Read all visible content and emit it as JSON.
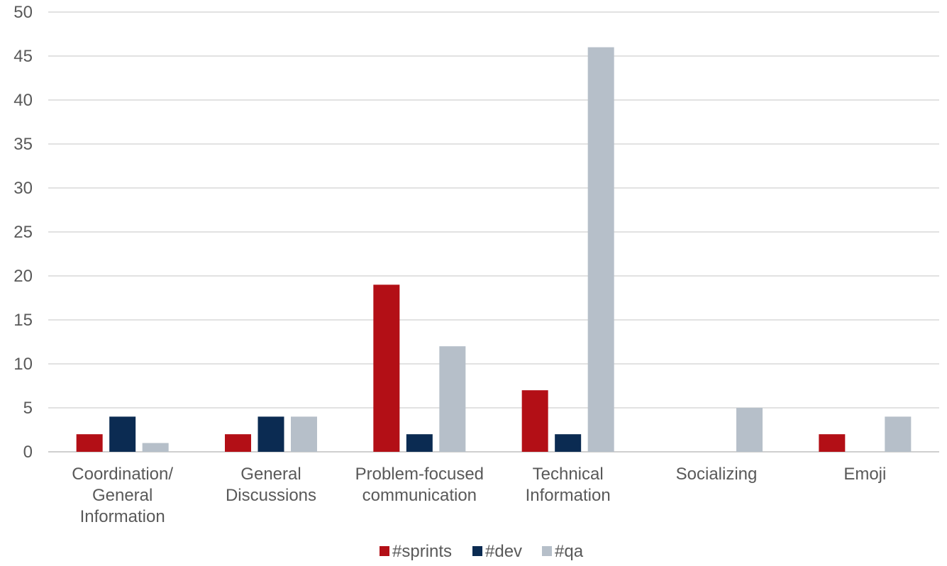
{
  "chart_data": {
    "type": "bar",
    "title": "",
    "xlabel": "",
    "ylabel": "",
    "ylim": [
      0,
      50
    ],
    "yticks": [
      0,
      5,
      10,
      15,
      20,
      25,
      30,
      35,
      40,
      45,
      50
    ],
    "grid": true,
    "legend_position": "bottom",
    "categories": [
      [
        "Coordination/",
        "General",
        "Information"
      ],
      [
        "General",
        "Discussions"
      ],
      [
        "Problem-focused",
        "communication"
      ],
      [
        "Technical",
        "Information"
      ],
      [
        "Socializing"
      ],
      [
        "Emoji"
      ]
    ],
    "series": [
      {
        "name": "#sprints",
        "color": "#B30F16",
        "values": [
          2,
          2,
          19,
          7,
          0,
          2
        ]
      },
      {
        "name": "#dev",
        "color": "#0B2B52",
        "values": [
          4,
          4,
          2,
          2,
          0,
          0
        ]
      },
      {
        "name": "#qa",
        "color": "#B6BFC9",
        "values": [
          1,
          4,
          12,
          46,
          5,
          4
        ]
      }
    ]
  }
}
